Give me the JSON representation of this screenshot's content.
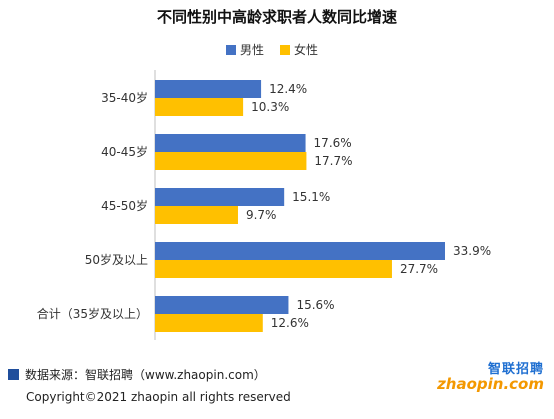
{
  "chart_data": {
    "type": "bar",
    "orientation": "horizontal",
    "title": "不同性别中高龄求职者人数同比增速",
    "categories": [
      "35-40岁",
      "40-45岁",
      "45-50岁",
      "50岁及以上",
      "合计（35岁及以上）"
    ],
    "series": [
      {
        "name": "男性",
        "color": "#4472c4",
        "values": [
          12.4,
          17.6,
          15.1,
          33.9,
          15.6
        ],
        "labels": [
          "12.4%",
          "17.6%",
          "15.1%",
          "33.9%",
          "15.6%"
        ]
      },
      {
        "name": "女性",
        "color": "#ffc000",
        "values": [
          10.3,
          17.7,
          9.7,
          27.7,
          12.6
        ],
        "labels": [
          "10.3%",
          "17.7%",
          "9.7%",
          "27.7%",
          "12.6%"
        ]
      }
    ],
    "xlim": [
      0,
      40
    ],
    "legend_position": "top",
    "grid": false
  },
  "footer": {
    "source": "数据来源：智联招聘（www.zhaopin.com）",
    "copyright": "Copyright©2021 zhaopin all rights reserved"
  },
  "brand": {
    "cn": "智联招聘",
    "en": "zhaopin.com"
  }
}
